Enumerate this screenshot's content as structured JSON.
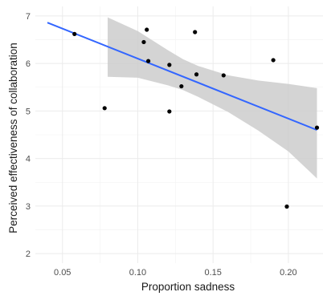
{
  "chart_data": {
    "type": "scatter",
    "title": "",
    "xlabel": "Proportion sadness",
    "ylabel": "Perceived effectiveness of collaboration",
    "xlim": [
      0.032,
      0.223
    ],
    "ylim": [
      1.8,
      7.2
    ],
    "x_ticks": [
      0.05,
      0.1,
      0.15,
      0.2
    ],
    "x_tick_labels": [
      "0.05",
      "0.10",
      "0.15",
      "0.20"
    ],
    "y_ticks": [
      2,
      3,
      4,
      5,
      6,
      7
    ],
    "y_tick_labels": [
      "2",
      "3",
      "4",
      "5",
      "6",
      "7"
    ],
    "grid": true,
    "points": [
      {
        "x": 0.058,
        "y": 6.62
      },
      {
        "x": 0.078,
        "y": 5.06
      },
      {
        "x": 0.104,
        "y": 6.45
      },
      {
        "x": 0.106,
        "y": 6.71
      },
      {
        "x": 0.107,
        "y": 6.05
      },
      {
        "x": 0.121,
        "y": 4.99
      },
      {
        "x": 0.121,
        "y": 5.97
      },
      {
        "x": 0.129,
        "y": 5.52
      },
      {
        "x": 0.138,
        "y": 6.66
      },
      {
        "x": 0.139,
        "y": 5.77
      },
      {
        "x": 0.157,
        "y": 5.75
      },
      {
        "x": 0.19,
        "y": 6.07
      },
      {
        "x": 0.199,
        "y": 2.99
      },
      {
        "x": 0.219,
        "y": 4.65
      }
    ],
    "fit_line": {
      "x": [
        0.04,
        0.219
      ],
      "y": [
        6.86,
        4.6
      ]
    },
    "confidence_band": [
      {
        "x": 0.08,
        "lower": 5.72,
        "upper": 6.97
      },
      {
        "x": 0.1,
        "lower": 5.7,
        "upper": 6.68
      },
      {
        "x": 0.12,
        "lower": 5.54,
        "upper": 6.28
      },
      {
        "x": 0.13,
        "lower": 5.44,
        "upper": 6.09
      },
      {
        "x": 0.14,
        "lower": 5.3,
        "upper": 5.95
      },
      {
        "x": 0.16,
        "lower": 4.98,
        "upper": 5.75
      },
      {
        "x": 0.18,
        "lower": 4.59,
        "upper": 5.64
      },
      {
        "x": 0.2,
        "lower": 4.15,
        "upper": 5.57
      },
      {
        "x": 0.219,
        "lower": 3.58,
        "upper": 5.48
      }
    ],
    "colors": {
      "line": "#3366ff",
      "band": "#cccccc",
      "point": "#000000",
      "grid": "#ebebeb"
    }
  }
}
